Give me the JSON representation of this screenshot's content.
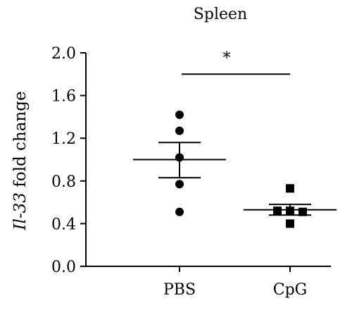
{
  "chart_data": {
    "type": "scatter",
    "title": "Spleen",
    "ylabel": {
      "gene": "Il-33",
      "rest": " fold change"
    },
    "categories": [
      "PBS",
      "CpG"
    ],
    "ylim": [
      0,
      2
    ],
    "yticks": [
      "0.0",
      "0.4",
      "0.8",
      "1.2",
      "1.6",
      "2.0"
    ],
    "ytick_values": [
      0,
      0.4,
      0.8,
      1.2,
      1.6,
      2.0
    ],
    "grid": false,
    "series": [
      {
        "category": "PBS",
        "marker": "circle",
        "points": [
          1.42,
          1.27,
          1.02,
          0.77,
          0.51
        ],
        "mean": 1.0,
        "sem_upper": 1.16,
        "sem_lower": 0.83
      },
      {
        "category": "CpG",
        "marker": "square",
        "points": [
          0.73,
          0.52,
          0.52,
          0.51,
          0.4
        ],
        "mean": 0.53,
        "sem_upper": 0.58,
        "sem_lower": 0.48
      }
    ],
    "significance": {
      "label": "*",
      "between": [
        "PBS",
        "CpG"
      ],
      "y": 1.8
    },
    "colors": {
      "marks": "#000000"
    }
  }
}
